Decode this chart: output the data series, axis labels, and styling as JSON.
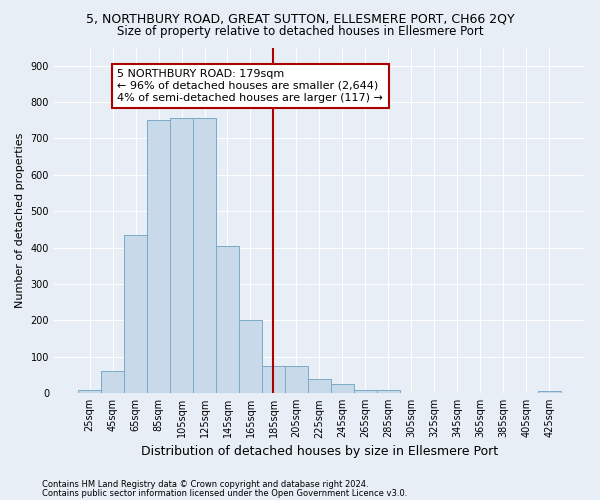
{
  "title": "5, NORTHBURY ROAD, GREAT SUTTON, ELLESMERE PORT, CH66 2QY",
  "subtitle": "Size of property relative to detached houses in Ellesmere Port",
  "xlabel": "Distribution of detached houses by size in Ellesmere Port",
  "ylabel": "Number of detached properties",
  "footnote1": "Contains HM Land Registry data © Crown copyright and database right 2024.",
  "footnote2": "Contains public sector information licensed under the Open Government Licence v3.0.",
  "bar_labels": [
    "25sqm",
    "45sqm",
    "65sqm",
    "85sqm",
    "105sqm",
    "125sqm",
    "145sqm",
    "165sqm",
    "185sqm",
    "205sqm",
    "225sqm",
    "245sqm",
    "265sqm",
    "285sqm",
    "305sqm",
    "325sqm",
    "345sqm",
    "365sqm",
    "385sqm",
    "405sqm",
    "425sqm"
  ],
  "bar_values": [
    10,
    60,
    435,
    750,
    755,
    755,
    405,
    200,
    75,
    75,
    40,
    25,
    10,
    10,
    0,
    0,
    0,
    0,
    0,
    0,
    5
  ],
  "bar_color": "#c8daea",
  "bar_edge_color": "#7aaac8",
  "vline_x": 8.0,
  "vline_color": "#aa0000",
  "annotation_box_text": "5 NORTHBURY ROAD: 179sqm\n← 96% of detached houses are smaller (2,644)\n4% of semi-detached houses are larger (117) →",
  "ylim": [
    0,
    950
  ],
  "yticks": [
    0,
    100,
    200,
    300,
    400,
    500,
    600,
    700,
    800,
    900
  ],
  "bg_color": "#e8eef5",
  "plot_bg_color": "#e8eef5",
  "title_fontsize": 9,
  "subtitle_fontsize": 8.5,
  "xlabel_fontsize": 9,
  "ylabel_fontsize": 8,
  "tick_fontsize": 7,
  "annotation_fontsize": 8,
  "footnote_fontsize": 6
}
